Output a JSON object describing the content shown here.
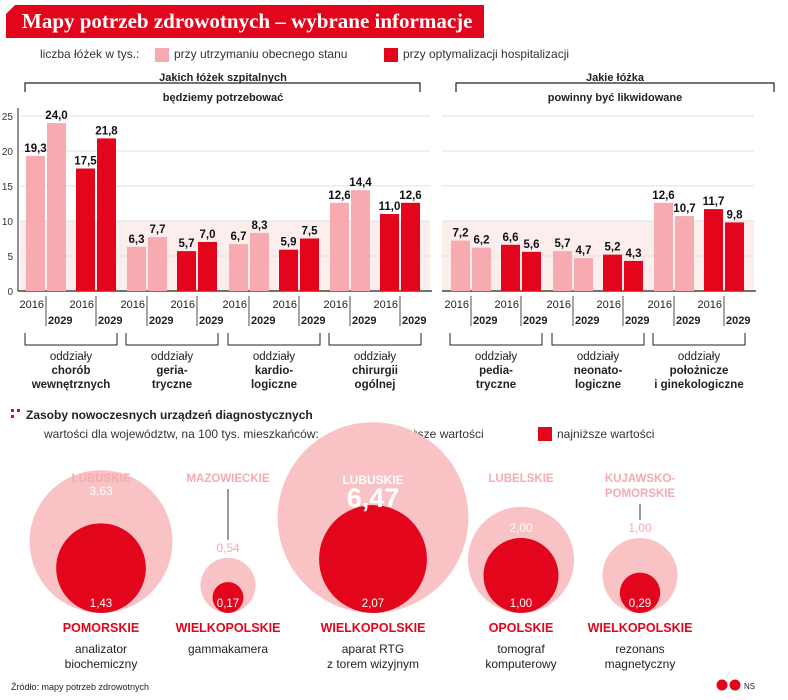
{
  "title": "Mapy potrzeb zdrowotnych – wybrane informacje",
  "colors": {
    "red": "#e3051b",
    "pink": "#f7aaaf",
    "pink_light": "#f9c3c6",
    "dark": "#222222"
  },
  "chart_data": {
    "type": "bar",
    "legend": {
      "label": "liczba łóżek w tys.:",
      "series_a": "przy utrzymaniu obecnego stanu",
      "series_b": "przy optymalizacji hospitalizacji"
    },
    "section_left_title": [
      "Jakich łóżek szpitalnych",
      "będziemy potrzebować"
    ],
    "section_right_title": [
      "Jakie łóżka",
      "powinny być likwidowane"
    ],
    "y_ticks": [
      "25",
      "20",
      "15",
      "10",
      "5",
      "0"
    ],
    "ylim": [
      0,
      25
    ],
    "year_a": "2016",
    "year_b": "2029",
    "groups": [
      {
        "name_line1": "oddziały",
        "name_bold": [
          "chorób",
          "wewnętrznych"
        ],
        "a2016": "19,3",
        "a2029": "24,0",
        "b2016": "17,5",
        "b2029": "21,8",
        "values": [
          19.3,
          24.0,
          17.5,
          21.8
        ]
      },
      {
        "name_line1": "oddziały",
        "name_bold": [
          "geria-",
          "tryczne"
        ],
        "a2016": "6,3",
        "a2029": "7,7",
        "b2016": "5,7",
        "b2029": "7,0",
        "values": [
          6.3,
          7.7,
          5.7,
          7.0
        ]
      },
      {
        "name_line1": "oddziały",
        "name_bold": [
          "kardio-",
          "logiczne"
        ],
        "a2016": "6,7",
        "a2029": "8,3",
        "b2016": "5,9",
        "b2029": "7,5",
        "values": [
          6.7,
          8.3,
          5.9,
          7.5
        ]
      },
      {
        "name_line1": "oddziały",
        "name_bold": [
          "chirurgii",
          "ogólnej"
        ],
        "a2016": "12,6",
        "a2029": "14,4",
        "b2016": "11,0",
        "b2029": "12,6",
        "values": [
          12.6,
          14.4,
          11.0,
          12.6
        ]
      },
      {
        "name_line1": "oddziały",
        "name_bold": [
          "pedia-",
          "tryczne"
        ],
        "a2016": "7,2",
        "a2029": "6,2",
        "b2016": "6,6",
        "b2029": "5,6",
        "values": [
          7.2,
          6.2,
          6.6,
          5.6
        ]
      },
      {
        "name_line1": "oddziały",
        "name_bold": [
          "neonato-",
          "logiczne"
        ],
        "a2016": "5,7",
        "a2029": "4,7",
        "b2016": "5,2",
        "b2029": "4,3",
        "values": [
          5.7,
          4.7,
          5.2,
          4.3
        ]
      },
      {
        "name_line1": "oddziały",
        "name_bold": [
          "położnicze",
          "i ginekologiczne"
        ],
        "a2016": "12,6",
        "a2029": "10,7",
        "b2016": "11,7",
        "b2029": "9,8",
        "values": [
          12.6,
          10.7,
          11.7,
          9.8
        ]
      }
    ],
    "devices_section": {
      "title": "Zasoby nowoczesnych urządzeń diagnostycznych",
      "subtitle": "wartości dla województw, na 100 tys. mieszkańców:",
      "legend_high": "najwyższe wartości",
      "legend_low": "najniższe wartości",
      "items": [
        {
          "high_region": [
            "LUBUSKIE"
          ],
          "high_label": "3,63",
          "high": 3.63,
          "low_region": "POMORSKIE",
          "low_label": "1,43",
          "low": 1.43,
          "device": [
            "analizator",
            "biochemiczny"
          ]
        },
        {
          "high_region": [
            "MAZOWIECKIE"
          ],
          "high_label": "0,54",
          "high": 0.54,
          "low_region": "WIELKOPOLSKIE",
          "low_label": "0,17",
          "low": 0.17,
          "device": [
            "gammakamera"
          ]
        },
        {
          "high_region": [
            "LUBUSKIE"
          ],
          "high_label": "6,47",
          "high": 6.47,
          "low_region": "WIELKOPOLSKIE",
          "low_label": "2,07",
          "low": 2.07,
          "device": [
            "aparat RTG",
            "z torem wizyjnym"
          ]
        },
        {
          "high_region": [
            "LUBELSKIE"
          ],
          "high_label": "2,00",
          "high": 2.0,
          "low_region": "OPOLSKIE",
          "low_label": "1,00",
          "low": 1.0,
          "device": [
            "tomograf",
            "komputerowy"
          ]
        },
        {
          "high_region": [
            "KUJAWSKO-",
            "POMORSKIE"
          ],
          "high_label": "1,00",
          "high": 1.0,
          "low_region": "WIELKOPOLSKIE",
          "low_label": "0,29",
          "low": 0.29,
          "device": [
            "rezonans",
            "magnetyczny"
          ]
        }
      ]
    },
    "source": "Źródło: mapy potrzeb zdrowotnych",
    "credit": "NS"
  }
}
